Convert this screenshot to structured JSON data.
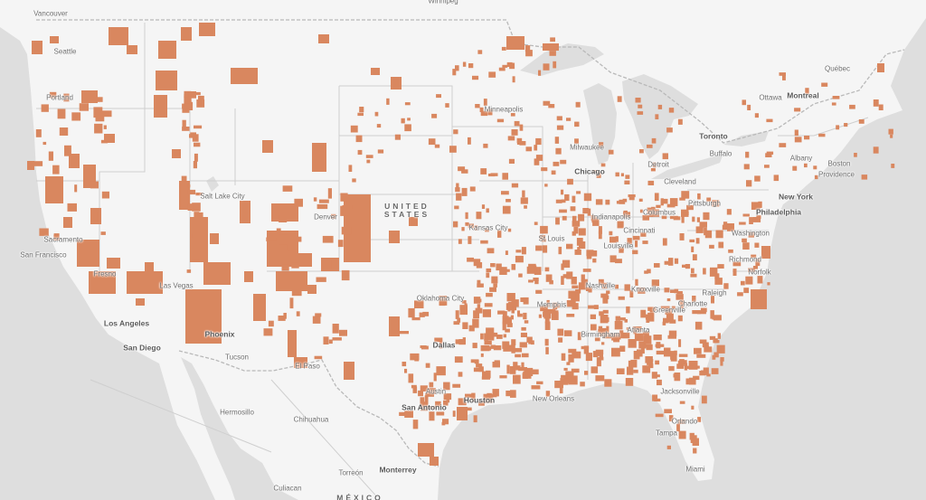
{
  "map": {
    "layer_color": "#d9875f",
    "land_color": "#f5f5f5",
    "water_color": "#dedede",
    "border_color": "#c8c8c8"
  },
  "country_labels": [
    {
      "id": "us",
      "line1": "UNITED",
      "line2": "STATES"
    },
    {
      "id": "mx",
      "line1": "MÉXICO",
      "line2": ""
    }
  ],
  "city_labels": [
    {
      "id": "vancouver",
      "text": "Vancouver",
      "major": false
    },
    {
      "id": "winnipeg",
      "text": "Winnipeg",
      "major": false
    },
    {
      "id": "seattle",
      "text": "Seattle",
      "major": false
    },
    {
      "id": "portland",
      "text": "Portland",
      "major": false
    },
    {
      "id": "quebec",
      "text": "Québec",
      "major": false
    },
    {
      "id": "ottawa",
      "text": "Ottawa",
      "major": false
    },
    {
      "id": "montreal",
      "text": "Montreal",
      "major": true
    },
    {
      "id": "minneapolis",
      "text": "Minneapolis",
      "major": false
    },
    {
      "id": "toronto",
      "text": "Toronto",
      "major": true
    },
    {
      "id": "milwaukee",
      "text": "Milwaukee",
      "major": false
    },
    {
      "id": "buffalo",
      "text": "Buffalo",
      "major": false
    },
    {
      "id": "albany",
      "text": "Albany",
      "major": false
    },
    {
      "id": "boston",
      "text": "Boston",
      "major": false
    },
    {
      "id": "providence",
      "text": "Providence",
      "major": false
    },
    {
      "id": "detroit",
      "text": "Detroit",
      "major": false
    },
    {
      "id": "chicago",
      "text": "Chicago",
      "major": true
    },
    {
      "id": "cleveland",
      "text": "Cleveland",
      "major": false
    },
    {
      "id": "salt_lake_city",
      "text": "Salt Lake City",
      "major": false
    },
    {
      "id": "new_york",
      "text": "New York",
      "major": true
    },
    {
      "id": "pittsburgh",
      "text": "Pittsburgh",
      "major": false
    },
    {
      "id": "denver",
      "text": "Denver",
      "major": false
    },
    {
      "id": "columbus",
      "text": "Columbus",
      "major": false
    },
    {
      "id": "philadelphia",
      "text": "Philadelphia",
      "major": true
    },
    {
      "id": "indianapolis",
      "text": "Indianapolis",
      "major": false
    },
    {
      "id": "sacramento",
      "text": "Sacramento",
      "major": false
    },
    {
      "id": "kansas_city",
      "text": "Kansas City",
      "major": false
    },
    {
      "id": "cincinnati",
      "text": "Cincinnati",
      "major": false
    },
    {
      "id": "washington",
      "text": "Washington",
      "major": false
    },
    {
      "id": "st_louis",
      "text": "St Louis",
      "major": false
    },
    {
      "id": "louisville",
      "text": "Louisville",
      "major": false
    },
    {
      "id": "san_francisco",
      "text": "San Francisco",
      "major": false
    },
    {
      "id": "richmond",
      "text": "Richmond",
      "major": false
    },
    {
      "id": "norfolk",
      "text": "Norfolk",
      "major": false
    },
    {
      "id": "fresno",
      "text": "Fresno",
      "major": false
    },
    {
      "id": "las_vegas",
      "text": "Las Vegas",
      "major": false
    },
    {
      "id": "nashville",
      "text": "Nashville",
      "major": false
    },
    {
      "id": "knoxville",
      "text": "Knoxville",
      "major": false
    },
    {
      "id": "raleigh",
      "text": "Raleigh",
      "major": false
    },
    {
      "id": "oklahoma_city",
      "text": "Oklahoma City",
      "major": false
    },
    {
      "id": "charlotte",
      "text": "Charlotte",
      "major": false
    },
    {
      "id": "memphis",
      "text": "Memphis",
      "major": false
    },
    {
      "id": "greenville",
      "text": "Greenville",
      "major": false
    },
    {
      "id": "los_angeles",
      "text": "Los Angeles",
      "major": true
    },
    {
      "id": "atlanta",
      "text": "Atlanta",
      "major": false
    },
    {
      "id": "phoenix",
      "text": "Phoenix",
      "major": true
    },
    {
      "id": "birmingham",
      "text": "Birmingham",
      "major": false
    },
    {
      "id": "dallas",
      "text": "Dallas",
      "major": true
    },
    {
      "id": "san_diego",
      "text": "San Diego",
      "major": true
    },
    {
      "id": "tucson",
      "text": "Tucson",
      "major": false
    },
    {
      "id": "el_paso",
      "text": "El Paso",
      "major": false
    },
    {
      "id": "austin",
      "text": "Austin",
      "major": false
    },
    {
      "id": "jacksonville",
      "text": "Jacksonville",
      "major": false
    },
    {
      "id": "houston",
      "text": "Houston",
      "major": true
    },
    {
      "id": "new_orleans",
      "text": "New Orleans",
      "major": false
    },
    {
      "id": "san_antonio",
      "text": "San Antonio",
      "major": true
    },
    {
      "id": "hermosillo",
      "text": "Hermosillo",
      "major": false
    },
    {
      "id": "chihuahua",
      "text": "Chihuahua",
      "major": false
    },
    {
      "id": "orlando",
      "text": "Orlando",
      "major": false
    },
    {
      "id": "tampa",
      "text": "Tampa",
      "major": false
    },
    {
      "id": "monterrey",
      "text": "Monterrey",
      "major": true
    },
    {
      "id": "miami",
      "text": "Miami",
      "major": false
    },
    {
      "id": "torreon",
      "text": "Torreón",
      "major": false
    },
    {
      "id": "culiacan",
      "text": "Culiacan",
      "major": false
    }
  ]
}
